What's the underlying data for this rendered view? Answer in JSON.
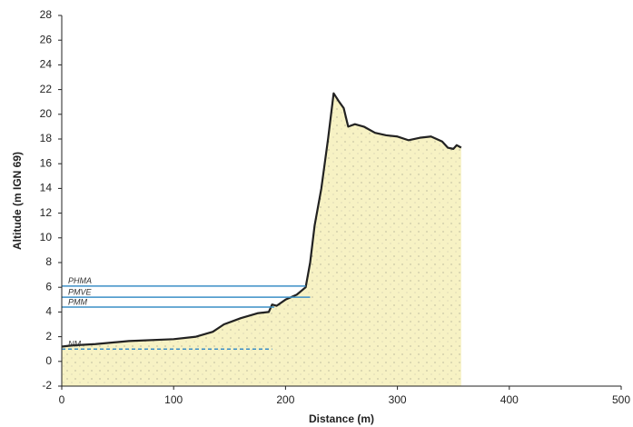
{
  "chart_data": {
    "type": "area",
    "x_label": "Distance (m)",
    "y_label": "Altitude (m IGN 69)",
    "x": [
      0,
      10,
      30,
      60,
      100,
      120,
      135,
      145,
      160,
      175,
      185,
      188,
      192,
      200,
      210,
      218,
      222,
      226,
      232,
      238,
      243,
      248,
      252,
      256,
      262,
      270,
      280,
      290,
      300,
      310,
      320,
      330,
      340,
      345,
      350,
      353,
      357
    ],
    "values": [
      1.2,
      1.3,
      1.4,
      1.65,
      1.8,
      2.0,
      2.4,
      3.0,
      3.5,
      3.9,
      4.0,
      4.6,
      4.5,
      5.0,
      5.4,
      6.0,
      8,
      11,
      14,
      18,
      21.7,
      21.0,
      20.5,
      19.0,
      19.2,
      19.0,
      18.5,
      18.3,
      18.2,
      17.9,
      18.1,
      18.2,
      17.8,
      17.3,
      17.2,
      17.5,
      17.3
    ],
    "color": "#f7f2c4",
    "line_color": "#222222",
    "levels": [
      {
        "label": "PHMA",
        "value": 6.1,
        "x_end": 218,
        "style": "solid"
      },
      {
        "label": "PMVE",
        "value": 5.2,
        "x_end": 222,
        "style": "solid"
      },
      {
        "label": "PMM",
        "value": 4.4,
        "x_end": 190,
        "style": "solid"
      },
      {
        "label": "NM",
        "value": 1.0,
        "x_end": 188,
        "style": "dashed"
      }
    ],
    "level_color": "#3b8fc6",
    "xlim": [
      0,
      500
    ],
    "xticks": [
      0,
      100,
      200,
      300,
      400,
      500
    ],
    "ylim": [
      -2,
      28
    ],
    "yticks": [
      -2,
      0,
      2,
      4,
      6,
      8,
      10,
      12,
      14,
      16,
      18,
      20,
      22,
      24,
      26,
      28
    ]
  }
}
